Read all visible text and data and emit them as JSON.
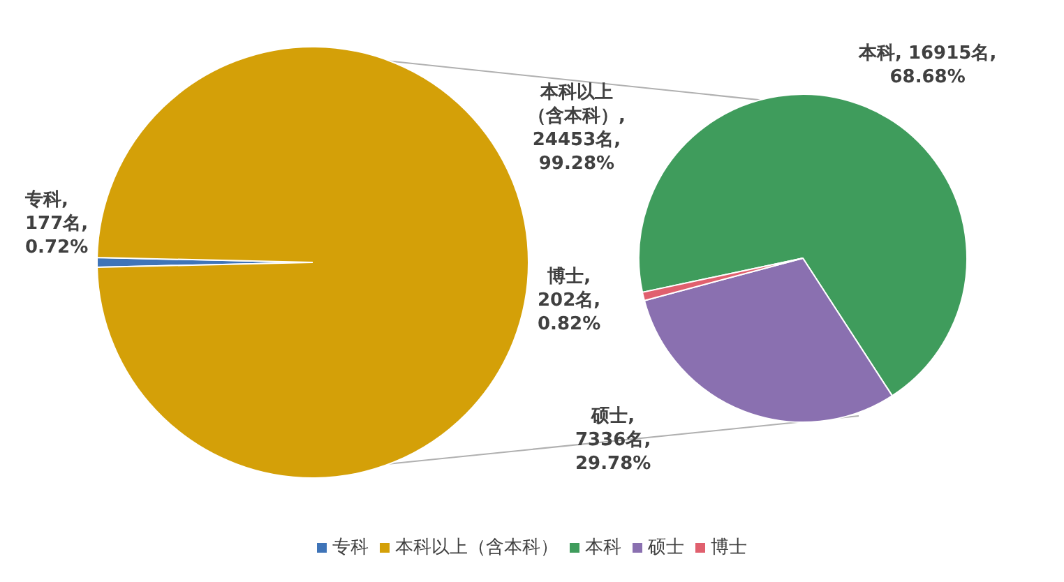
{
  "chart_data": [
    {
      "type": "pie",
      "categories": [
        "专科",
        "本科以上（含本科）"
      ],
      "values": [
        177,
        24453
      ],
      "colors": [
        "#3f74b8",
        "#d4a008"
      ],
      "value_labels": [
        "专科, 177名, 0.72%",
        "本科以上（含本科）, 24453名, 99.28%"
      ],
      "legend": "bottom"
    },
    {
      "type": "pie",
      "categories": [
        "本科",
        "硕士",
        "博士"
      ],
      "values": [
        16915,
        7336,
        202
      ],
      "colors": [
        "#3f9c5c",
        "#8a70b0",
        "#e0606e"
      ],
      "value_labels": [
        "本科, 16915名, 68.68%",
        "硕士, 7336名, 29.78%",
        "博士, 202名, 0.82%"
      ],
      "legend": "bottom"
    }
  ]
}
